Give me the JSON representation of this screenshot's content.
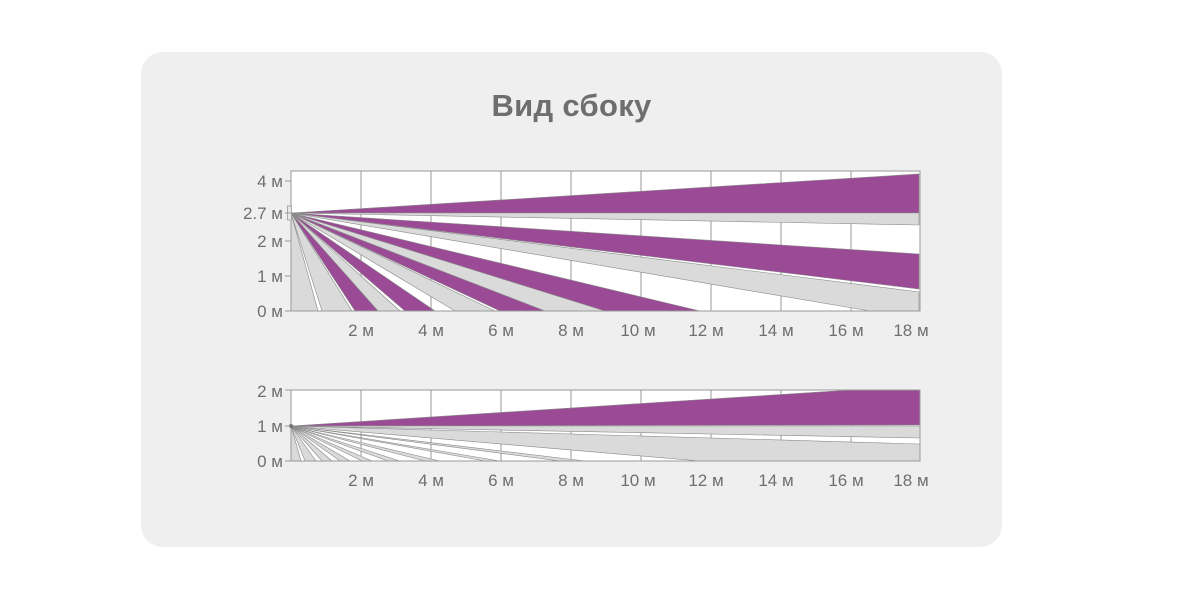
{
  "title": "Вид сбоку",
  "colors": {
    "zone_purple": "#9b4a96",
    "zone_gray": "#dadada",
    "frame": "#9a9a9a",
    "background_panel": "#efefef",
    "text": "#6f6f6f"
  },
  "diagrams": [
    {
      "y_labels": [
        "4 м",
        "2.7 м",
        "2 м",
        "1 м",
        "0 м"
      ],
      "x_labels": [
        "2 м",
        "4 м",
        "6 м",
        "8 м",
        "10 м",
        "12 м",
        "14 м",
        "16 м",
        "18 м"
      ]
    },
    {
      "y_labels": [
        "2 м",
        "1 м",
        "0 м"
      ],
      "x_labels": [
        "2 м",
        "4 м",
        "6 м",
        "8 м",
        "10 м",
        "12 м",
        "14 м",
        "16 м",
        "18 м"
      ]
    }
  ]
}
